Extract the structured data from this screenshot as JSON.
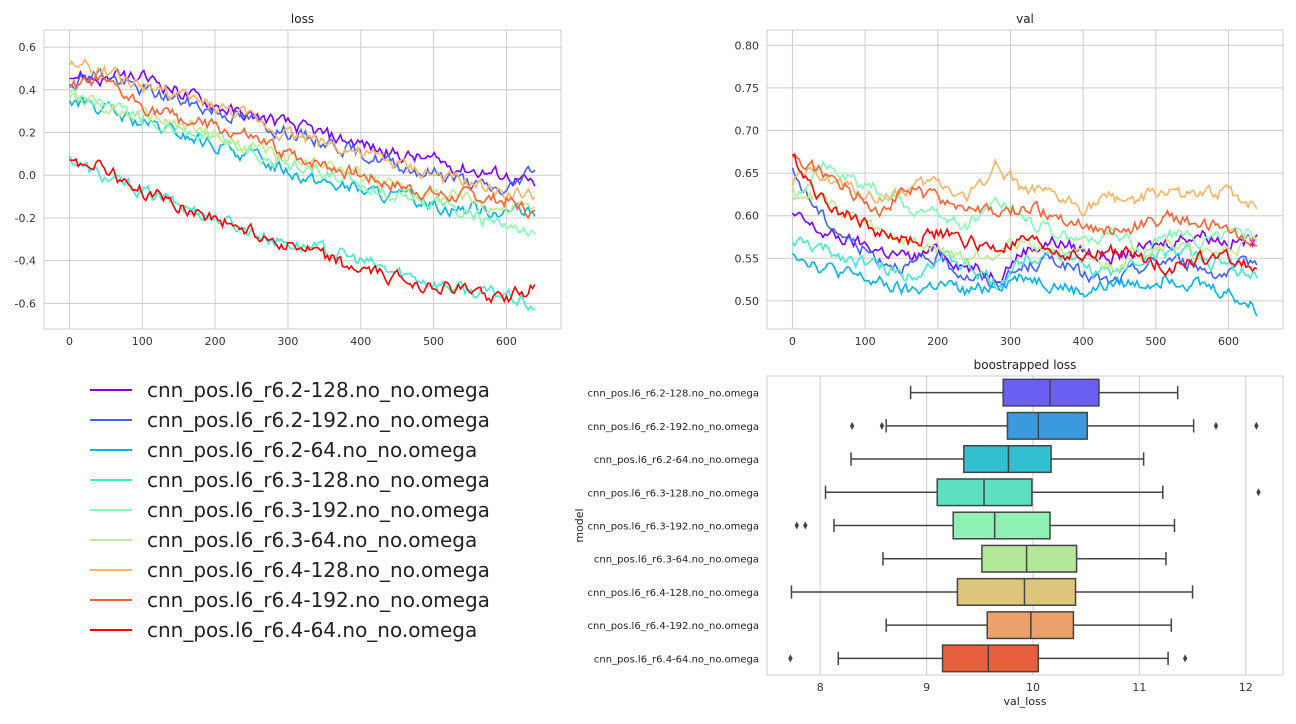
{
  "colors": [
    "#7f00ff",
    "#4062fa",
    "#00b5eb",
    "#40ecd4",
    "#80feb3",
    "#c0eb8d",
    "#ffb360",
    "#ff6230",
    "#ff0000"
  ],
  "box_colors": [
    "#6a5ff0",
    "#3b9ade",
    "#32bfcf",
    "#5edfc2",
    "#8ff0b4",
    "#b2e898",
    "#ddc67c",
    "#eca06a",
    "#e6603e"
  ],
  "legend": {
    "entries": [
      "cnn_pos.l6_r6.2-128.no_no.omega",
      "cnn_pos.l6_r6.2-192.no_no.omega",
      "cnn_pos.l6_r6.2-64.no_no.omega",
      "cnn_pos.l6_r6.3-128.no_no.omega",
      "cnn_pos.l6_r6.3-192.no_no.omega",
      "cnn_pos.l6_r6.3-64.no_no.omega",
      "cnn_pos.l6_r6.4-128.no_no.omega",
      "cnn_pos.l6_r6.4-192.no_no.omega",
      "cnn_pos.l6_r6.4-64.no_no.omega"
    ]
  },
  "chart_data": [
    {
      "type": "line",
      "title": "loss",
      "xlabel": "",
      "ylabel": "",
      "xlim": [
        -35,
        675
      ],
      "ylim": [
        -0.72,
        0.68
      ],
      "xticks": [
        0,
        100,
        200,
        300,
        400,
        500,
        600
      ],
      "yticks": [
        -0.6,
        -0.4,
        -0.2,
        0.0,
        0.2,
        0.4,
        0.6
      ],
      "ytick_labels": [
        "-0.6",
        "-0.4",
        "-0.2",
        "0.0",
        "0.2",
        "0.4",
        "0.6"
      ],
      "grid": true,
      "x": [
        0,
        40,
        80,
        120,
        160,
        200,
        240,
        280,
        320,
        360,
        400,
        440,
        480,
        520,
        560,
        600,
        640
      ],
      "series": [
        {
          "values": [
            0.48,
            0.45,
            0.46,
            0.44,
            0.38,
            0.33,
            0.28,
            0.26,
            0.22,
            0.18,
            0.15,
            0.1,
            0.08,
            0.05,
            0.02,
            0.0,
            -0.05
          ]
        },
        {
          "values": [
            0.44,
            0.48,
            0.42,
            0.38,
            0.34,
            0.3,
            0.27,
            0.22,
            0.18,
            0.15,
            0.1,
            0.06,
            0.02,
            0.0,
            -0.05,
            -0.08,
            0.05
          ]
        },
        {
          "values": [
            0.35,
            0.32,
            0.26,
            0.22,
            0.18,
            0.14,
            0.1,
            0.05,
            0.0,
            -0.04,
            -0.07,
            -0.1,
            -0.12,
            -0.15,
            -0.16,
            -0.16,
            -0.2
          ]
        },
        {
          "values": [
            0.08,
            0.0,
            -0.05,
            -0.1,
            -0.15,
            -0.2,
            -0.25,
            -0.3,
            -0.33,
            -0.36,
            -0.4,
            -0.45,
            -0.48,
            -0.52,
            -0.55,
            -0.56,
            -0.62
          ]
        },
        {
          "values": [
            0.36,
            0.32,
            0.28,
            0.25,
            0.21,
            0.17,
            0.13,
            0.08,
            0.04,
            0.0,
            -0.05,
            -0.08,
            -0.1,
            -0.15,
            -0.2,
            -0.25,
            -0.3
          ]
        },
        {
          "values": [
            0.37,
            0.33,
            0.29,
            0.26,
            0.22,
            0.18,
            0.13,
            0.1,
            0.06,
            0.03,
            0.0,
            -0.05,
            -0.08,
            -0.1,
            -0.12,
            -0.16,
            -0.15
          ]
        },
        {
          "values": [
            0.52,
            0.5,
            0.44,
            0.4,
            0.36,
            0.32,
            0.28,
            0.22,
            0.18,
            0.15,
            0.1,
            0.06,
            0.02,
            -0.02,
            -0.05,
            -0.08,
            -0.1
          ]
        },
        {
          "values": [
            0.4,
            0.44,
            0.36,
            0.3,
            0.25,
            0.22,
            0.18,
            0.12,
            0.08,
            0.04,
            0.0,
            -0.04,
            -0.07,
            -0.1,
            -0.1,
            -0.12,
            -0.18
          ]
        },
        {
          "values": [
            0.05,
            0.06,
            -0.05,
            -0.1,
            -0.15,
            -0.2,
            -0.25,
            -0.3,
            -0.35,
            -0.4,
            -0.45,
            -0.48,
            -0.5,
            -0.53,
            -0.55,
            -0.58,
            -0.52
          ]
        }
      ]
    },
    {
      "type": "line",
      "title": "val",
      "xlabel": "",
      "ylabel": "",
      "xlim": [
        -35,
        675
      ],
      "ylim": [
        0.467,
        0.818
      ],
      "xticks": [
        0,
        100,
        200,
        300,
        400,
        500,
        600
      ],
      "yticks": [
        0.5,
        0.55,
        0.6,
        0.65,
        0.7,
        0.75,
        0.8
      ],
      "ytick_labels": [
        "0.50",
        "0.55",
        "0.60",
        "0.65",
        "0.70",
        "0.75",
        "0.80"
      ],
      "grid": true,
      "x": [
        0,
        40,
        80,
        120,
        160,
        200,
        240,
        280,
        320,
        360,
        400,
        440,
        480,
        520,
        560,
        600,
        640
      ],
      "series": [
        {
          "values": [
            0.6,
            0.58,
            0.57,
            0.56,
            0.55,
            0.56,
            0.54,
            0.53,
            0.56,
            0.57,
            0.56,
            0.55,
            0.56,
            0.57,
            0.58,
            0.57,
            0.57
          ]
        },
        {
          "values": [
            0.65,
            0.6,
            0.57,
            0.55,
            0.54,
            0.55,
            0.53,
            0.52,
            0.54,
            0.55,
            0.53,
            0.52,
            0.54,
            0.55,
            0.54,
            0.53,
            0.55
          ]
        },
        {
          "values": [
            0.56,
            0.54,
            0.53,
            0.52,
            0.51,
            0.52,
            0.51,
            0.52,
            0.53,
            0.52,
            0.51,
            0.52,
            0.52,
            0.53,
            0.52,
            0.51,
            0.49
          ]
        },
        {
          "values": [
            0.57,
            0.56,
            0.55,
            0.54,
            0.53,
            0.55,
            0.54,
            0.52,
            0.55,
            0.56,
            0.54,
            0.53,
            0.55,
            0.56,
            0.55,
            0.54,
            0.53
          ]
        },
        {
          "values": [
            0.62,
            0.66,
            0.64,
            0.63,
            0.61,
            0.6,
            0.59,
            0.62,
            0.6,
            0.58,
            0.57,
            0.58,
            0.56,
            0.58,
            0.57,
            0.58,
            0.58
          ]
        },
        {
          "values": [
            0.63,
            0.62,
            0.6,
            0.58,
            0.57,
            0.56,
            0.55,
            0.56,
            0.57,
            0.56,
            0.55,
            0.54,
            0.56,
            0.57,
            0.55,
            0.56,
            0.57
          ]
        },
        {
          "values": [
            0.64,
            0.65,
            0.63,
            0.62,
            0.63,
            0.64,
            0.62,
            0.66,
            0.63,
            0.62,
            0.61,
            0.62,
            0.62,
            0.63,
            0.62,
            0.63,
            0.61
          ]
        },
        {
          "values": [
            0.67,
            0.65,
            0.63,
            0.61,
            0.63,
            0.62,
            0.61,
            0.6,
            0.61,
            0.6,
            0.59,
            0.58,
            0.59,
            0.6,
            0.59,
            0.58,
            0.57
          ]
        },
        {
          "values": [
            0.67,
            0.62,
            0.6,
            0.58,
            0.57,
            0.58,
            0.57,
            0.56,
            0.57,
            0.56,
            0.55,
            0.56,
            0.55,
            0.54,
            0.55,
            0.55,
            0.54
          ]
        }
      ]
    },
    {
      "type": "box",
      "title": "boostrapped loss",
      "xlabel": "val_loss",
      "ylabel": "model",
      "xlim": [
        7.5,
        12.35
      ],
      "xticks": [
        8,
        9,
        10,
        11,
        12
      ],
      "grid": true,
      "categories": [
        "cnn_pos.l6_r6.2-128.no_no.omega",
        "cnn_pos.l6_r6.2-192.no_no.omega",
        "cnn_pos.l6_r6.2-64.no_no.omega",
        "cnn_pos.l6_r6.3-128.no_no.omega",
        "cnn_pos.l6_r6.3-192.no_no.omega",
        "cnn_pos.l6_r6.3-64.no_no.omega",
        "cnn_pos.l6_r6.4-128.no_no.omega",
        "cnn_pos.l6_r6.4-192.no_no.omega",
        "cnn_pos.l6_r6.4-64.no_no.omega"
      ],
      "boxes": [
        {
          "whislo": 8.85,
          "q1": 9.72,
          "med": 10.16,
          "q3": 10.62,
          "whishi": 11.36,
          "fliers": []
        },
        {
          "whislo": 8.62,
          "q1": 9.76,
          "med": 10.05,
          "q3": 10.51,
          "whishi": 11.51,
          "fliers": [
            8.3,
            8.58,
            11.72,
            12.1
          ]
        },
        {
          "whislo": 8.29,
          "q1": 9.35,
          "med": 9.77,
          "q3": 10.17,
          "whishi": 11.04,
          "fliers": []
        },
        {
          "whislo": 8.05,
          "q1": 9.1,
          "med": 9.54,
          "q3": 9.99,
          "whishi": 11.22,
          "fliers": [
            12.12
          ]
        },
        {
          "whislo": 8.13,
          "q1": 9.25,
          "med": 9.64,
          "q3": 10.16,
          "whishi": 11.33,
          "fliers": [
            7.78,
            7.86
          ]
        },
        {
          "whislo": 8.59,
          "q1": 9.52,
          "med": 9.94,
          "q3": 10.41,
          "whishi": 11.25,
          "fliers": []
        },
        {
          "whislo": 7.73,
          "q1": 9.29,
          "med": 9.92,
          "q3": 10.4,
          "whishi": 11.5,
          "fliers": []
        },
        {
          "whislo": 8.62,
          "q1": 9.57,
          "med": 9.98,
          "q3": 10.38,
          "whishi": 11.3,
          "fliers": []
        },
        {
          "whislo": 8.17,
          "q1": 9.15,
          "med": 9.58,
          "q3": 10.05,
          "whishi": 11.27,
          "fliers": [
            7.72,
            11.43
          ]
        }
      ]
    }
  ]
}
